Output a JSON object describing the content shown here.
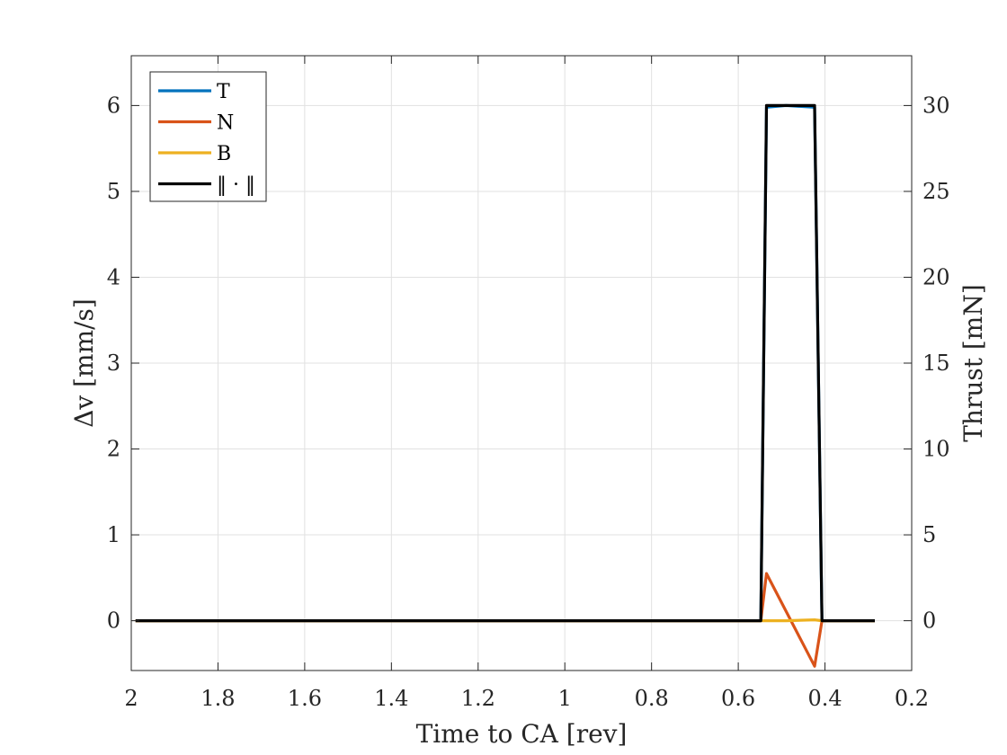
{
  "chart_data": {
    "type": "line",
    "xlabel": "Time to CA [rev]",
    "ylabel": "Δv [mm/s]",
    "ylabel_right": "Thrust [mN]",
    "x_reversed": true,
    "xlim": [
      0.2,
      2
    ],
    "ylim": [
      -0.58,
      6.58
    ],
    "ylim_right": [
      -2.9,
      32.9
    ],
    "xticks": [
      "2",
      "1.8",
      "1.6",
      "1.4",
      "1.2",
      "1",
      "0.8",
      "0.6",
      "0.4",
      "0.2"
    ],
    "yticks": [
      "0",
      "1",
      "2",
      "3",
      "4",
      "5",
      "6"
    ],
    "yticks_right": [
      "0",
      "5",
      "10",
      "15",
      "20",
      "25",
      "30"
    ],
    "grid": true,
    "legend_position": "top-left",
    "series": [
      {
        "name": "T",
        "color": "#0072BD",
        "x": [
          1.99,
          0.548,
          0.535,
          0.49,
          0.424,
          0.407,
          0.285
        ],
        "y": [
          0,
          0,
          5.98,
          6.0,
          5.98,
          0,
          0
        ]
      },
      {
        "name": "N",
        "color": "#D95319",
        "x": [
          1.99,
          0.548,
          0.535,
          0.424,
          0.407,
          0.285
        ],
        "y": [
          0,
          0,
          0.55,
          -0.53,
          0,
          0
        ]
      },
      {
        "name": "B",
        "color": "#EDB120",
        "x": [
          1.99,
          0.548,
          0.535,
          0.49,
          0.424,
          0.407,
          0.285
        ],
        "y": [
          0,
          0,
          0.0,
          0.0,
          0.01,
          0,
          0
        ]
      },
      {
        "name": "‖ · ‖",
        "color": "#000000",
        "x": [
          1.99,
          0.548,
          0.535,
          0.49,
          0.424,
          0.407,
          0.285
        ],
        "y": [
          0,
          0,
          6.0,
          6.0,
          6.0,
          0,
          0
        ]
      }
    ]
  }
}
